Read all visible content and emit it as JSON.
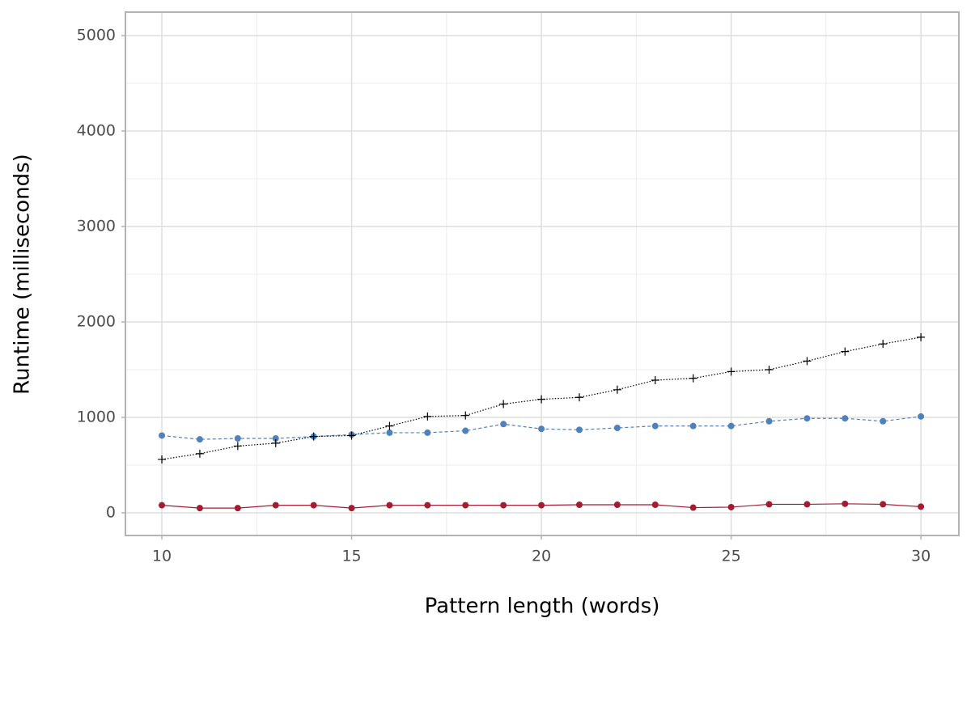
{
  "chart_data": {
    "type": "line",
    "x_label": "Pattern length (words)",
    "y_label": "Runtime (milliseconds)",
    "x": [
      10,
      11,
      12,
      13,
      14,
      15,
      16,
      17,
      18,
      19,
      20,
      21,
      22,
      23,
      24,
      25,
      26,
      27,
      28,
      29,
      30
    ],
    "series": [
      {
        "color": "#a51c30",
        "dash": "solid",
        "marker": "circle",
        "values": [
          80,
          50,
          50,
          80,
          80,
          50,
          80,
          80,
          80,
          80,
          80,
          85,
          85,
          85,
          55,
          60,
          90,
          90,
          95,
          90,
          65
        ]
      },
      {
        "color": "#4f81bd",
        "dash": "dashed",
        "marker": "circle",
        "values": [
          810,
          770,
          780,
          780,
          800,
          820,
          840,
          840,
          860,
          930,
          880,
          870,
          890,
          910,
          910,
          910,
          960,
          990,
          990,
          960,
          1010
        ]
      },
      {
        "color": "#000000",
        "dash": "dotted",
        "marker": "plus",
        "values": [
          560,
          620,
          700,
          730,
          800,
          810,
          910,
          1010,
          1020,
          1140,
          1190,
          1210,
          1290,
          1390,
          1410,
          1480,
          1500,
          1590,
          1690,
          1770,
          1840
        ]
      }
    ],
    "xlim": [
      9.04,
      31.0
    ],
    "xticks": [
      10,
      15,
      20,
      25,
      30
    ],
    "ylim": [
      -237,
      5246
    ],
    "yticks": [
      0,
      1000,
      2000,
      3000,
      4000,
      5000
    ],
    "grid": true
  }
}
